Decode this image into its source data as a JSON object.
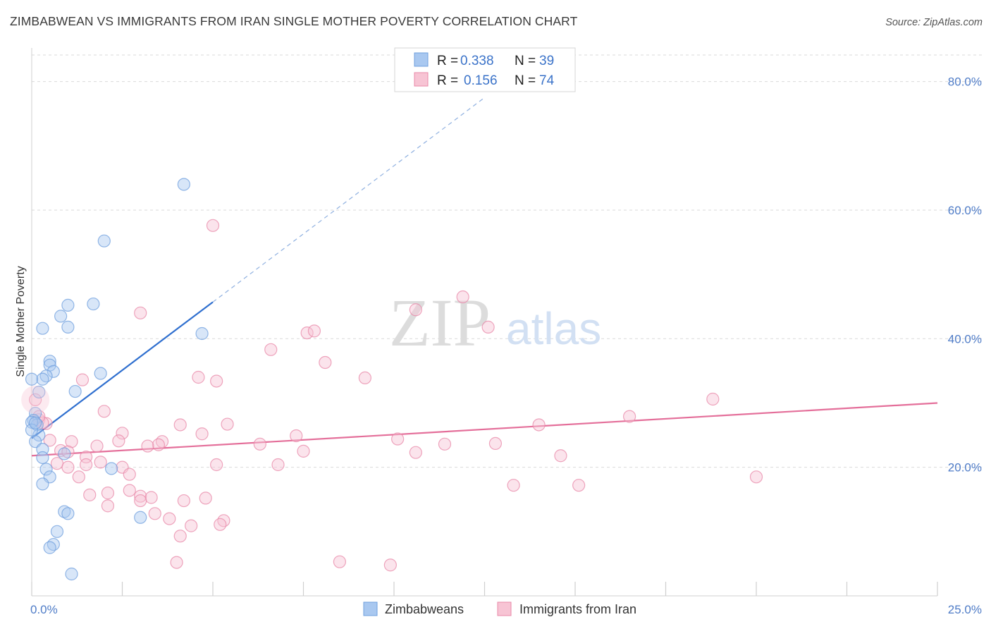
{
  "title": "ZIMBABWEAN VS IMMIGRANTS FROM IRAN SINGLE MOTHER POVERTY CORRELATION CHART",
  "source": "Source: ZipAtlas.com",
  "watermark": {
    "zip": "ZIP",
    "atlas": "atlas"
  },
  "colors": {
    "blue_fill": "#a9c8f0",
    "blue_stroke": "#6f9fde",
    "blue_line": "#2f6fcf",
    "pink_fill": "#f7c4d4",
    "pink_stroke": "#e888a8",
    "pink_line": "#e46f9a",
    "grid": "#d9d9d9",
    "axis_text": "#4f7cc7"
  },
  "chart_data": {
    "type": "scatter",
    "ylabel": "Single Mother Poverty",
    "xlabel": "",
    "xlim": [
      0,
      25
    ],
    "ylim": [
      0,
      85
    ],
    "x_ticks": [
      0,
      2.5,
      5,
      7.5,
      10,
      12.5,
      15,
      17.5,
      20,
      22.5,
      25
    ],
    "x_tick_labels": {
      "min": "0.0%",
      "max": "25.0%"
    },
    "y_ticks": [
      20,
      40,
      60,
      80
    ],
    "y_tick_labels": [
      "20.0%",
      "40.0%",
      "60.0%",
      "80.0%"
    ],
    "legend": [
      {
        "r_label": "R = ",
        "r_value": "0.338",
        "n_label": "N = ",
        "n_value": "39"
      },
      {
        "r_label": "R = ",
        "r_value": "0.156",
        "n_label": "N = ",
        "n_value": "74"
      }
    ],
    "series": [
      {
        "name": "Zimbabweans",
        "trend": {
          "x0": 0,
          "y0": 24.5,
          "x1": 5.0,
          "y1": 45.7,
          "dash_to_x": 12.5
        },
        "points": [
          [
            4.2,
            64.0
          ],
          [
            2.0,
            55.2
          ],
          [
            1.7,
            45.4
          ],
          [
            1.0,
            45.2
          ],
          [
            0.8,
            43.5
          ],
          [
            0.3,
            41.6
          ],
          [
            1.0,
            41.8
          ],
          [
            4.7,
            40.8
          ],
          [
            0.5,
            36.5
          ],
          [
            0.5,
            35.9
          ],
          [
            0.6,
            34.9
          ],
          [
            1.9,
            34.6
          ],
          [
            0.4,
            34.2
          ],
          [
            0.3,
            33.7
          ],
          [
            0.0,
            33.7
          ],
          [
            0.2,
            31.7
          ],
          [
            1.2,
            31.8
          ],
          [
            0.1,
            28.4
          ],
          [
            0.05,
            27.3
          ],
          [
            0.15,
            26.6
          ],
          [
            0.0,
            27.0
          ],
          [
            0.2,
            25.0
          ],
          [
            0.1,
            24.0
          ],
          [
            0.3,
            22.8
          ],
          [
            0.9,
            22.1
          ],
          [
            0.3,
            21.5
          ],
          [
            0.4,
            19.7
          ],
          [
            2.2,
            19.8
          ],
          [
            0.5,
            18.5
          ],
          [
            0.3,
            17.4
          ],
          [
            0.9,
            13.1
          ],
          [
            1.0,
            12.8
          ],
          [
            3.0,
            12.2
          ],
          [
            0.7,
            10.0
          ],
          [
            0.6,
            8.0
          ],
          [
            0.5,
            7.5
          ],
          [
            1.1,
            3.4
          ],
          [
            0.0,
            25.8
          ],
          [
            0.1,
            26.9
          ]
        ]
      },
      {
        "name": "Immigrants from Iran",
        "trend": {
          "x0": 0,
          "y0": 21.8,
          "x1": 25,
          "y1": 30.0
        },
        "points": [
          [
            0.1,
            30.5
          ],
          [
            5.0,
            57.6
          ],
          [
            11.9,
            46.5
          ],
          [
            3.0,
            44.0
          ],
          [
            10.6,
            44.5
          ],
          [
            7.6,
            40.9
          ],
          [
            7.8,
            41.2
          ],
          [
            12.6,
            41.8
          ],
          [
            6.6,
            38.3
          ],
          [
            8.1,
            36.3
          ],
          [
            1.4,
            33.6
          ],
          [
            4.6,
            34.0
          ],
          [
            5.1,
            33.4
          ],
          [
            9.2,
            33.9
          ],
          [
            18.8,
            30.6
          ],
          [
            0.2,
            27.4
          ],
          [
            2.0,
            28.7
          ],
          [
            0.4,
            26.8
          ],
          [
            4.1,
            26.6
          ],
          [
            5.4,
            26.7
          ],
          [
            14.0,
            26.6
          ],
          [
            16.5,
            27.9
          ],
          [
            2.5,
            25.3
          ],
          [
            4.7,
            25.2
          ],
          [
            7.3,
            24.9
          ],
          [
            0.5,
            24.2
          ],
          [
            1.1,
            24.0
          ],
          [
            2.4,
            24.1
          ],
          [
            3.6,
            24.0
          ],
          [
            10.1,
            24.4
          ],
          [
            6.3,
            23.6
          ],
          [
            3.5,
            23.5
          ],
          [
            3.2,
            23.3
          ],
          [
            1.8,
            23.3
          ],
          [
            11.4,
            23.6
          ],
          [
            12.8,
            23.7
          ],
          [
            0.8,
            22.6
          ],
          [
            1.0,
            22.4
          ],
          [
            7.5,
            22.5
          ],
          [
            10.6,
            22.3
          ],
          [
            1.5,
            21.6
          ],
          [
            14.6,
            21.8
          ],
          [
            1.9,
            20.8
          ],
          [
            2.5,
            20.0
          ],
          [
            5.1,
            20.4
          ],
          [
            0.7,
            20.6
          ],
          [
            1.5,
            20.4
          ],
          [
            6.8,
            20.4
          ],
          [
            1.0,
            20.0
          ],
          [
            1.3,
            18.5
          ],
          [
            2.7,
            18.9
          ],
          [
            20.0,
            18.5
          ],
          [
            13.3,
            17.2
          ],
          [
            15.1,
            17.2
          ],
          [
            2.1,
            16.0
          ],
          [
            2.7,
            16.4
          ],
          [
            1.6,
            15.7
          ],
          [
            3.0,
            15.5
          ],
          [
            3.3,
            15.3
          ],
          [
            4.8,
            15.2
          ],
          [
            3.0,
            14.8
          ],
          [
            4.2,
            14.8
          ],
          [
            2.1,
            14.0
          ],
          [
            3.4,
            12.8
          ],
          [
            3.8,
            12.0
          ],
          [
            5.3,
            11.7
          ],
          [
            5.2,
            11.1
          ],
          [
            4.4,
            10.9
          ],
          [
            4.1,
            9.3
          ],
          [
            4.0,
            5.2
          ],
          [
            8.5,
            5.3
          ],
          [
            9.9,
            4.8
          ],
          [
            0.3,
            26.9
          ],
          [
            0.2,
            27.9
          ]
        ]
      }
    ]
  }
}
